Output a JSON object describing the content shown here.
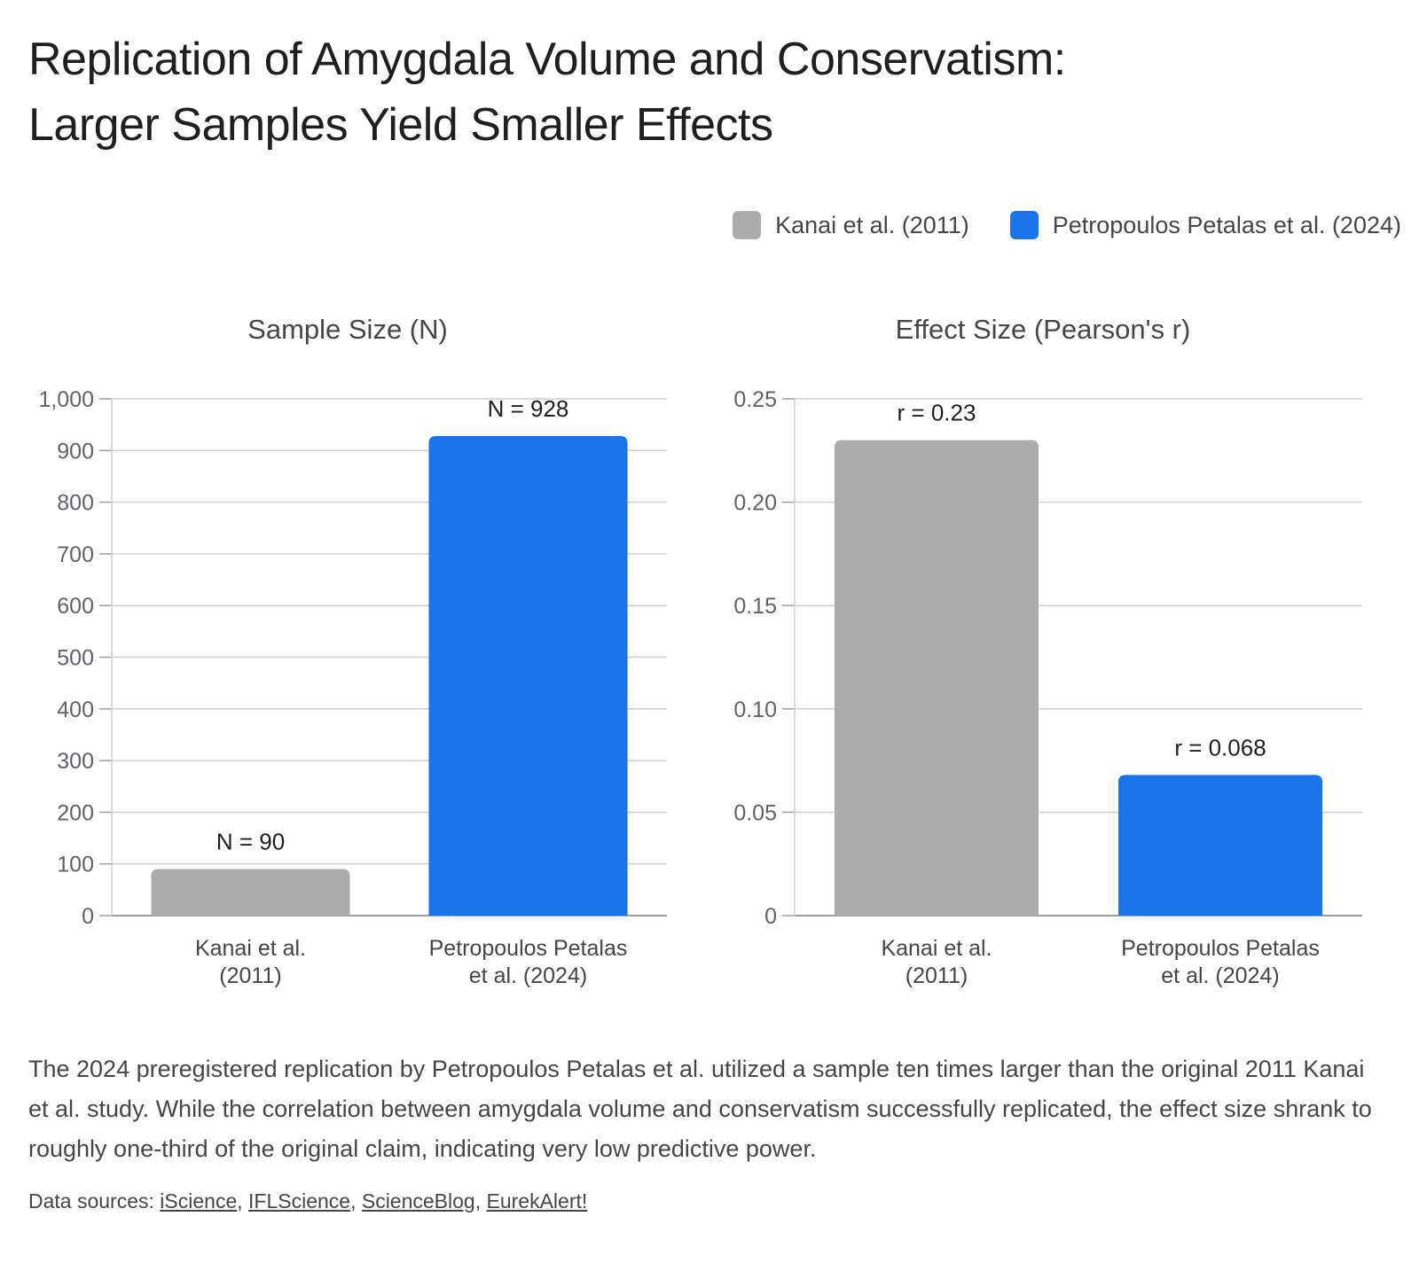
{
  "title_lines": [
    "Replication of Amygdala Volume and Conservatism:",
    "Larger Samples Yield Smaller Effects"
  ],
  "legend": [
    {
      "label": "Kanai et al. (2011)",
      "color": "#acacac"
    },
    {
      "label": "Petropoulos Petalas et al. (2024)",
      "color": "#1a73e8"
    }
  ],
  "chart_data": [
    {
      "type": "bar",
      "title": "Sample Size (N)",
      "categories": [
        [
          "Kanai et al.",
          "(2011)"
        ],
        [
          "Petropoulos Petalas",
          "et al. (2024)"
        ]
      ],
      "values": [
        90,
        928
      ],
      "data_labels": [
        "N = 90",
        "N = 928"
      ],
      "colors": [
        "#acacac",
        "#1a73e8"
      ],
      "ylim": [
        0,
        1000
      ],
      "yticks": [
        0,
        100,
        200,
        300,
        400,
        500,
        600,
        700,
        800,
        900,
        1000
      ],
      "ytick_labels": [
        "0",
        "100",
        "200",
        "300",
        "400",
        "500",
        "600",
        "700",
        "800",
        "900",
        "1,000"
      ],
      "grid": true
    },
    {
      "type": "bar",
      "title": "Effect Size (Pearson's r)",
      "categories": [
        [
          "Kanai et al.",
          "(2011)"
        ],
        [
          "Petropoulos Petalas",
          "et al. (2024)"
        ]
      ],
      "values": [
        0.23,
        0.068
      ],
      "data_labels": [
        "r = 0.23",
        "r = 0.068"
      ],
      "colors": [
        "#acacac",
        "#1a73e8"
      ],
      "ylim": [
        0,
        0.25
      ],
      "yticks": [
        0,
        0.05,
        0.1,
        0.15,
        0.2,
        0.25
      ],
      "ytick_labels": [
        "0",
        "0.05",
        "0.10",
        "0.15",
        "0.20",
        "0.25"
      ],
      "grid": true
    }
  ],
  "description": "The 2024 preregistered replication by Petropoulos Petalas et al. utilized a sample ten times larger than the original 2011 Kanai et al. study. While the correlation between amygdala volume and conservatism successfully replicated, the effect size shrank to roughly one-third of the original claim, indicating very low predictive power.",
  "sources": {
    "prefix": "Data sources: ",
    "links": [
      "iScience",
      "IFLScience",
      "ScienceBlog",
      "EurekAlert!"
    ]
  }
}
